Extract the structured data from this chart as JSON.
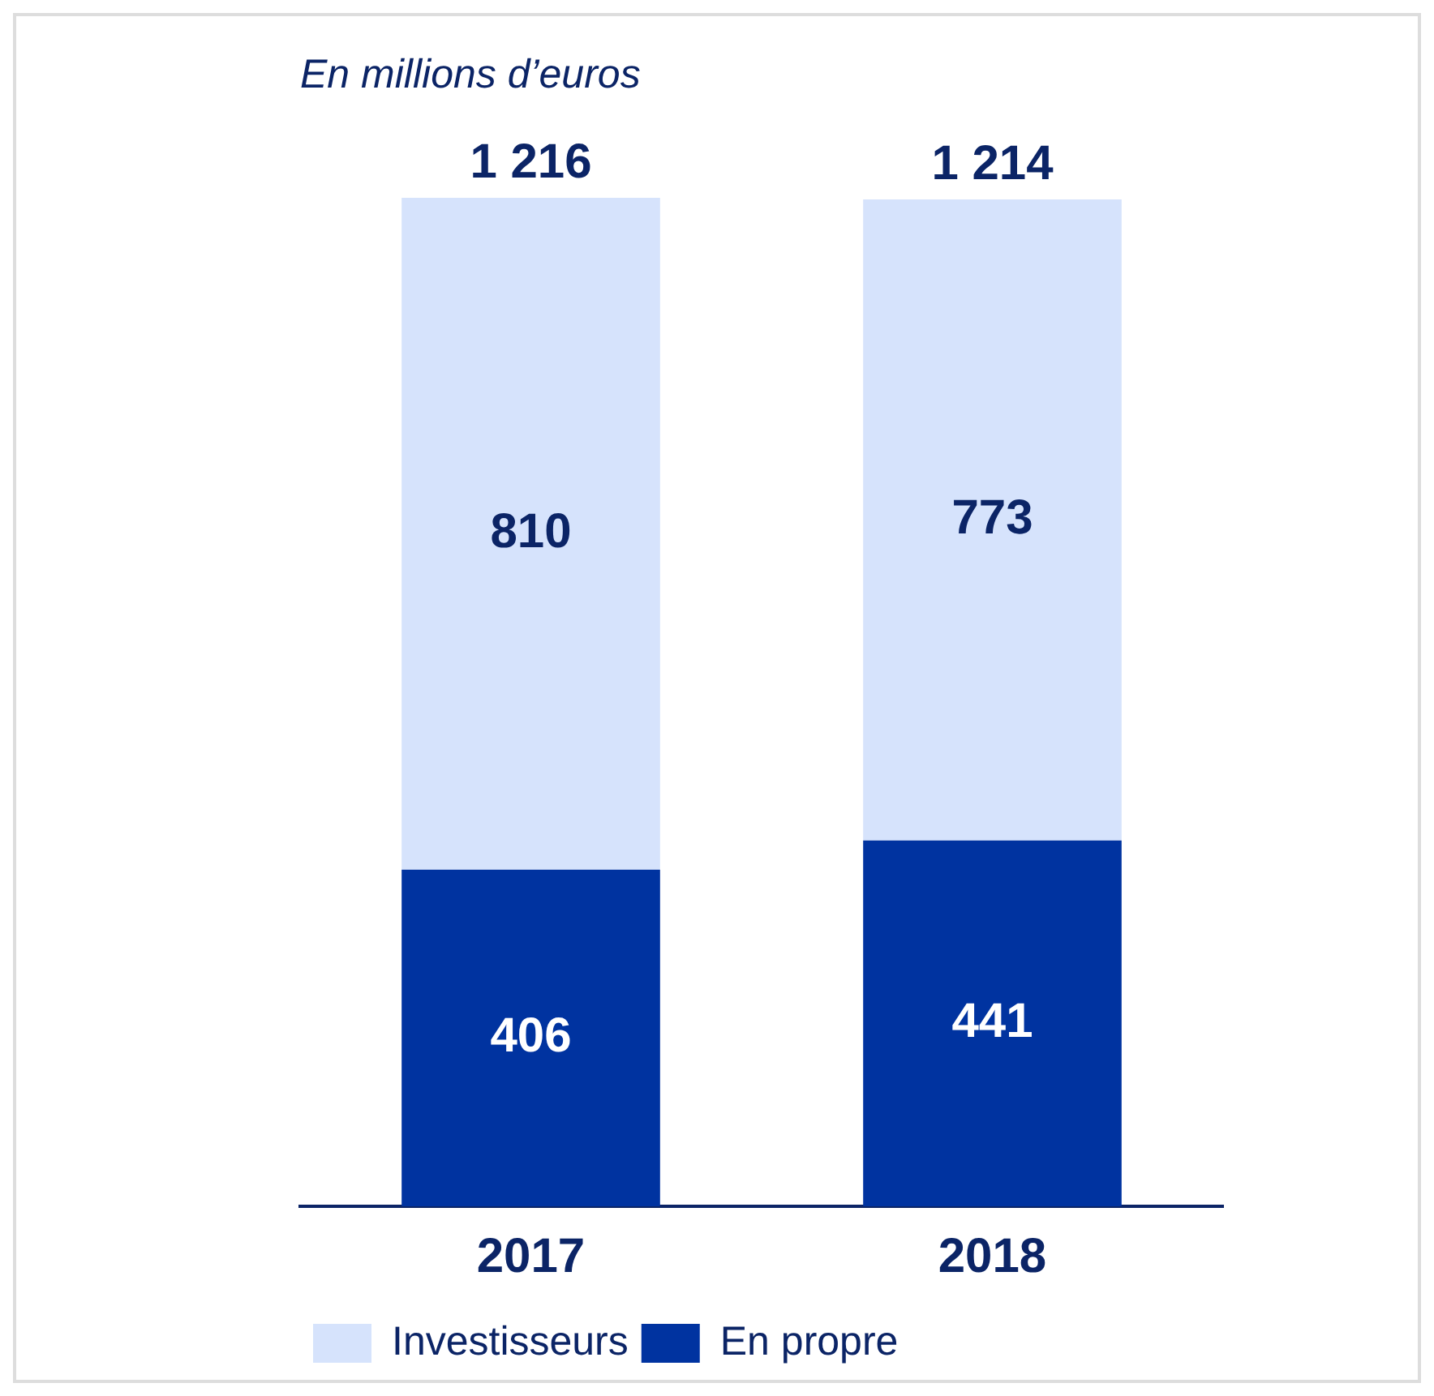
{
  "chart_data": {
    "type": "bar",
    "title": "En millions d’euros",
    "categories": [
      "2017",
      "2018"
    ],
    "stacked": true,
    "data_labels": true,
    "legend": "bottom left",
    "grid": false,
    "series": [
      {
        "name": "En propre",
        "color": "#0033a0",
        "values": [
          406,
          441
        ]
      },
      {
        "name": "Investisseurs",
        "color": "#d6e3fc",
        "values": [
          810,
          773
        ]
      }
    ],
    "totals": [
      "1 216",
      "1 214"
    ]
  }
}
